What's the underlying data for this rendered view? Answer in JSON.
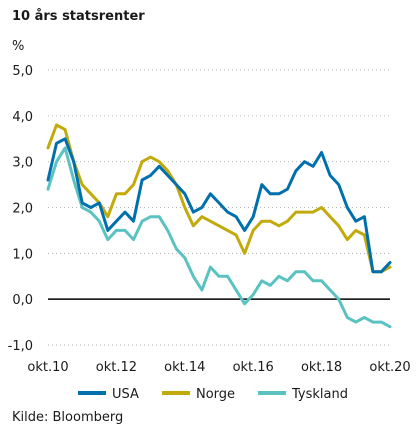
{
  "chart_data": {
    "type": "line",
    "title": "10 års statsrenter",
    "ylabel": "%",
    "xlabel": "",
    "source": "Kilde: Bloomberg",
    "ylim": [
      -1.0,
      5.0
    ],
    "yticks": [
      5.0,
      4.0,
      3.0,
      2.0,
      1.0,
      0.0,
      -1.0
    ],
    "ytick_labels": [
      "5,0",
      "4,0",
      "3,0",
      "2,0",
      "1,0",
      "0,0",
      "-1,0"
    ],
    "xlim": [
      "2010-10",
      "2020-10"
    ],
    "xticks": [
      "2010-10",
      "2012-10",
      "2014-10",
      "2016-10",
      "2018-10",
      "2020-10"
    ],
    "xtick_labels": [
      "okt.10",
      "okt.12",
      "okt.14",
      "okt.16",
      "okt.18",
      "okt.20"
    ],
    "grid": "horizontal dotted",
    "legend_position": "bottom",
    "colors": {
      "USA": "#0070ad",
      "Norge": "#c2aa0c",
      "Tyskland": "#5bc2c2",
      "zero_line": "#000000",
      "grid": "#b0b0b0"
    },
    "x": [
      "2010-10",
      "2011-01",
      "2011-04",
      "2011-07",
      "2011-10",
      "2012-01",
      "2012-04",
      "2012-07",
      "2012-10",
      "2013-01",
      "2013-04",
      "2013-07",
      "2013-10",
      "2014-01",
      "2014-04",
      "2014-07",
      "2014-10",
      "2015-01",
      "2015-04",
      "2015-07",
      "2015-10",
      "2016-01",
      "2016-04",
      "2016-07",
      "2016-10",
      "2017-01",
      "2017-04",
      "2017-07",
      "2017-10",
      "2018-01",
      "2018-04",
      "2018-07",
      "2018-10",
      "2019-01",
      "2019-04",
      "2019-07",
      "2019-10",
      "2020-01",
      "2020-04",
      "2020-07",
      "2020-10"
    ],
    "series": [
      {
        "name": "USA",
        "values": [
          2.6,
          3.4,
          3.5,
          3.0,
          2.1,
          2.0,
          2.1,
          1.5,
          1.7,
          1.9,
          1.7,
          2.6,
          2.7,
          2.9,
          2.7,
          2.5,
          2.3,
          1.9,
          2.0,
          2.3,
          2.1,
          1.9,
          1.8,
          1.5,
          1.8,
          2.5,
          2.3,
          2.3,
          2.4,
          2.8,
          3.0,
          2.9,
          3.2,
          2.7,
          2.5,
          2.0,
          1.7,
          1.8,
          0.6,
          0.6,
          0.8
        ]
      },
      {
        "name": "Norge",
        "values": [
          3.3,
          3.8,
          3.7,
          3.0,
          2.5,
          2.3,
          2.1,
          1.8,
          2.3,
          2.3,
          2.5,
          3.0,
          3.1,
          3.0,
          2.8,
          2.5,
          2.0,
          1.6,
          1.8,
          1.7,
          1.6,
          1.5,
          1.4,
          1.0,
          1.5,
          1.7,
          1.7,
          1.6,
          1.7,
          1.9,
          1.9,
          1.9,
          2.0,
          1.8,
          1.6,
          1.3,
          1.5,
          1.4,
          0.6,
          0.6,
          0.7
        ]
      },
      {
        "name": "Tyskland",
        "values": [
          2.4,
          3.0,
          3.3,
          2.6,
          2.0,
          1.9,
          1.7,
          1.3,
          1.5,
          1.5,
          1.3,
          1.7,
          1.8,
          1.8,
          1.5,
          1.1,
          0.9,
          0.5,
          0.2,
          0.7,
          0.5,
          0.5,
          0.2,
          -0.1,
          0.1,
          0.4,
          0.3,
          0.5,
          0.4,
          0.6,
          0.6,
          0.4,
          0.4,
          0.2,
          0.0,
          -0.4,
          -0.5,
          -0.4,
          -0.5,
          -0.5,
          -0.6
        ]
      }
    ]
  }
}
